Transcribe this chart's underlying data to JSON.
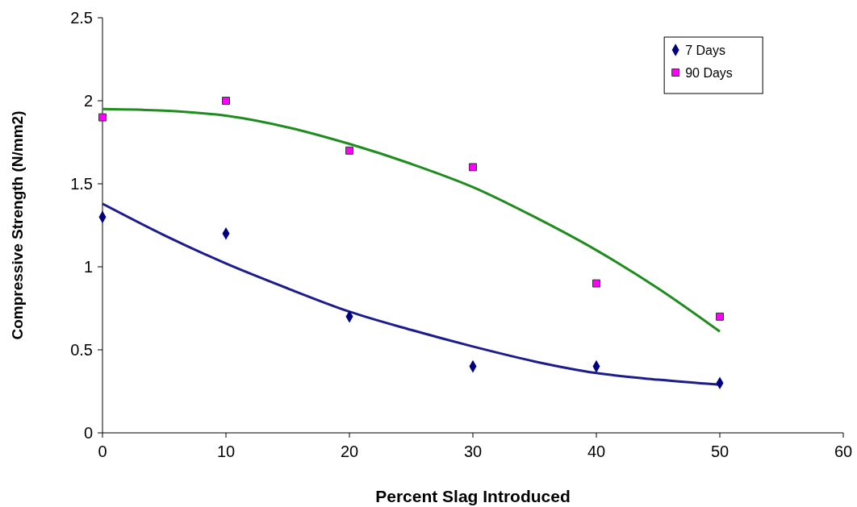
{
  "chart_data": {
    "type": "scatter",
    "xlabel": "Percent Slag Introduced",
    "ylabel": "Compressive Strength (N/mm2)",
    "xlim": [
      0,
      60
    ],
    "xticks": [
      0,
      10,
      20,
      30,
      40,
      50,
      60
    ],
    "ylim": [
      0,
      2.5
    ],
    "yticks": [
      0,
      0.5,
      1,
      1.5,
      2,
      2.5
    ],
    "grid": false,
    "legend": "top right",
    "series": [
      {
        "name": "7 Days",
        "marker": "diamond",
        "color": "#000080",
        "x": [
          0,
          10,
          20,
          30,
          40,
          50
        ],
        "values": [
          1.3,
          1.2,
          0.7,
          0.4,
          0.4,
          0.3
        ]
      },
      {
        "name": "90 Days",
        "marker": "square",
        "color": "#ff00ff",
        "x": [
          0,
          10,
          20,
          30,
          40,
          50
        ],
        "values": [
          1.9,
          2.0,
          1.7,
          1.6,
          0.9,
          0.7
        ]
      },
      {
        "type": "line",
        "color": "#1c1c8c",
        "x": [
          0,
          5,
          10,
          15,
          20,
          25,
          30,
          35,
          40,
          45,
          50
        ],
        "values": [
          1.38,
          1.19,
          1.02,
          0.87,
          0.73,
          0.62,
          0.52,
          0.43,
          0.36,
          0.32,
          0.29
        ]
      },
      {
        "type": "line",
        "color": "#1e8c1e",
        "x": [
          0,
          5,
          10,
          15,
          20,
          25,
          30,
          35,
          40,
          45,
          50
        ],
        "values": [
          1.95,
          1.94,
          1.91,
          1.84,
          1.74,
          1.62,
          1.48,
          1.3,
          1.1,
          0.87,
          0.61
        ]
      }
    ]
  }
}
